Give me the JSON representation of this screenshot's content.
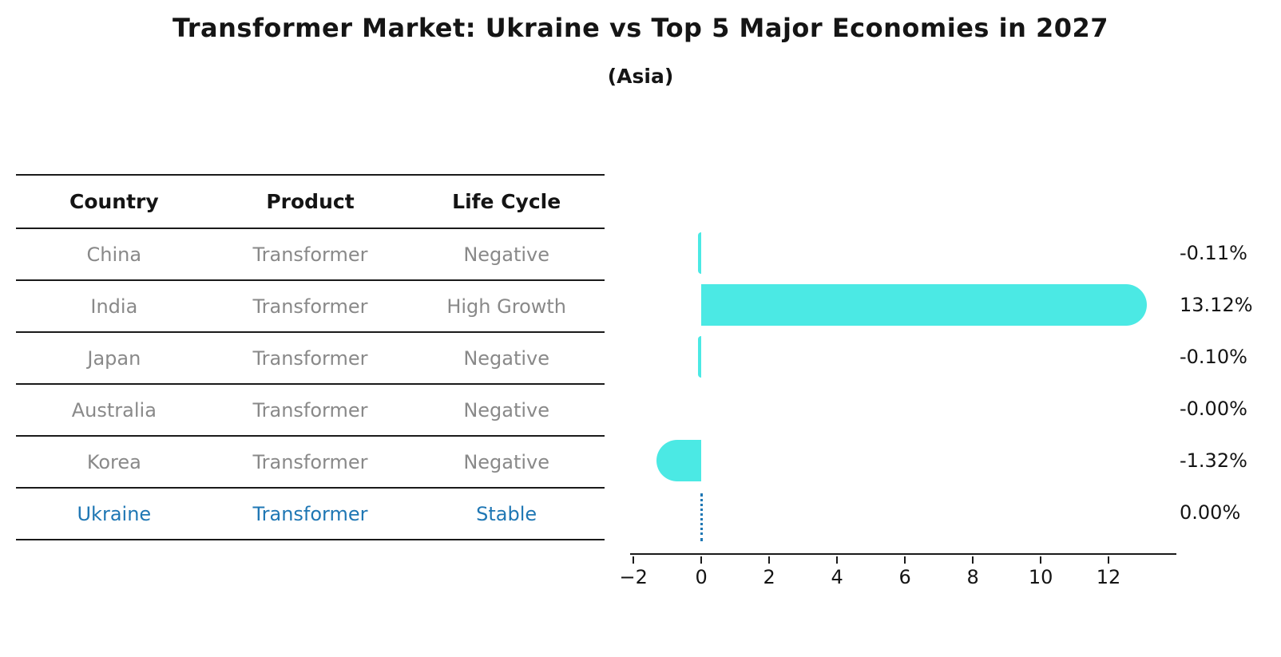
{
  "title": "Transformer Market: Ukraine vs Top 5 Major Economies in 2027",
  "subtitle": "(Asia)",
  "table": {
    "headers": [
      "Country",
      "Product",
      "Life Cycle"
    ],
    "rows": [
      {
        "country": "China",
        "product": "Transformer",
        "life_cycle": "Negative",
        "highlight": false
      },
      {
        "country": "India",
        "product": "Transformer",
        "life_cycle": "High Growth",
        "highlight": false
      },
      {
        "country": "Japan",
        "product": "Transformer",
        "life_cycle": "Negative",
        "highlight": false
      },
      {
        "country": "Australia",
        "product": "Transformer",
        "life_cycle": "Negative",
        "highlight": false
      },
      {
        "country": "Korea",
        "product": "Transformer",
        "life_cycle": "Negative",
        "highlight": false
      },
      {
        "country": "Ukraine",
        "product": "Transformer",
        "life_cycle": "Stable",
        "highlight": true
      }
    ]
  },
  "chart_data": {
    "type": "bar",
    "orientation": "horizontal",
    "title": "Transformer Market: Ukraine vs Top 5 Major Economies in 2027 (Asia)",
    "categories": [
      "China",
      "India",
      "Japan",
      "Australia",
      "Korea",
      "Ukraine"
    ],
    "values": [
      -0.11,
      13.12,
      -0.1,
      -0.0,
      -1.32,
      0.0
    ],
    "value_labels": [
      "-0.11%",
      "13.12%",
      "-0.10%",
      "-0.00%",
      "-1.32%",
      "0.00%"
    ],
    "unit": "percent CAGR",
    "xlim": [
      -2.1,
      14.0
    ],
    "xticks": [
      -2,
      0,
      2,
      4,
      6,
      8,
      10,
      12
    ],
    "xtick_labels": [
      "−2",
      "0",
      "2",
      "4",
      "6",
      "8",
      "10",
      "12"
    ],
    "grid": false,
    "legend": false,
    "bar_color": "#4BE9E4",
    "highlight_color": "#1f77b4",
    "zero_line_row": "Ukraine",
    "zero_line_style": "dotted"
  },
  "colors": {
    "text_primary": "#141414",
    "text_muted": "#898989",
    "accent_blue": "#1f77b4",
    "bar_turquoise": "#4BE9E4",
    "background": "#ffffff"
  }
}
